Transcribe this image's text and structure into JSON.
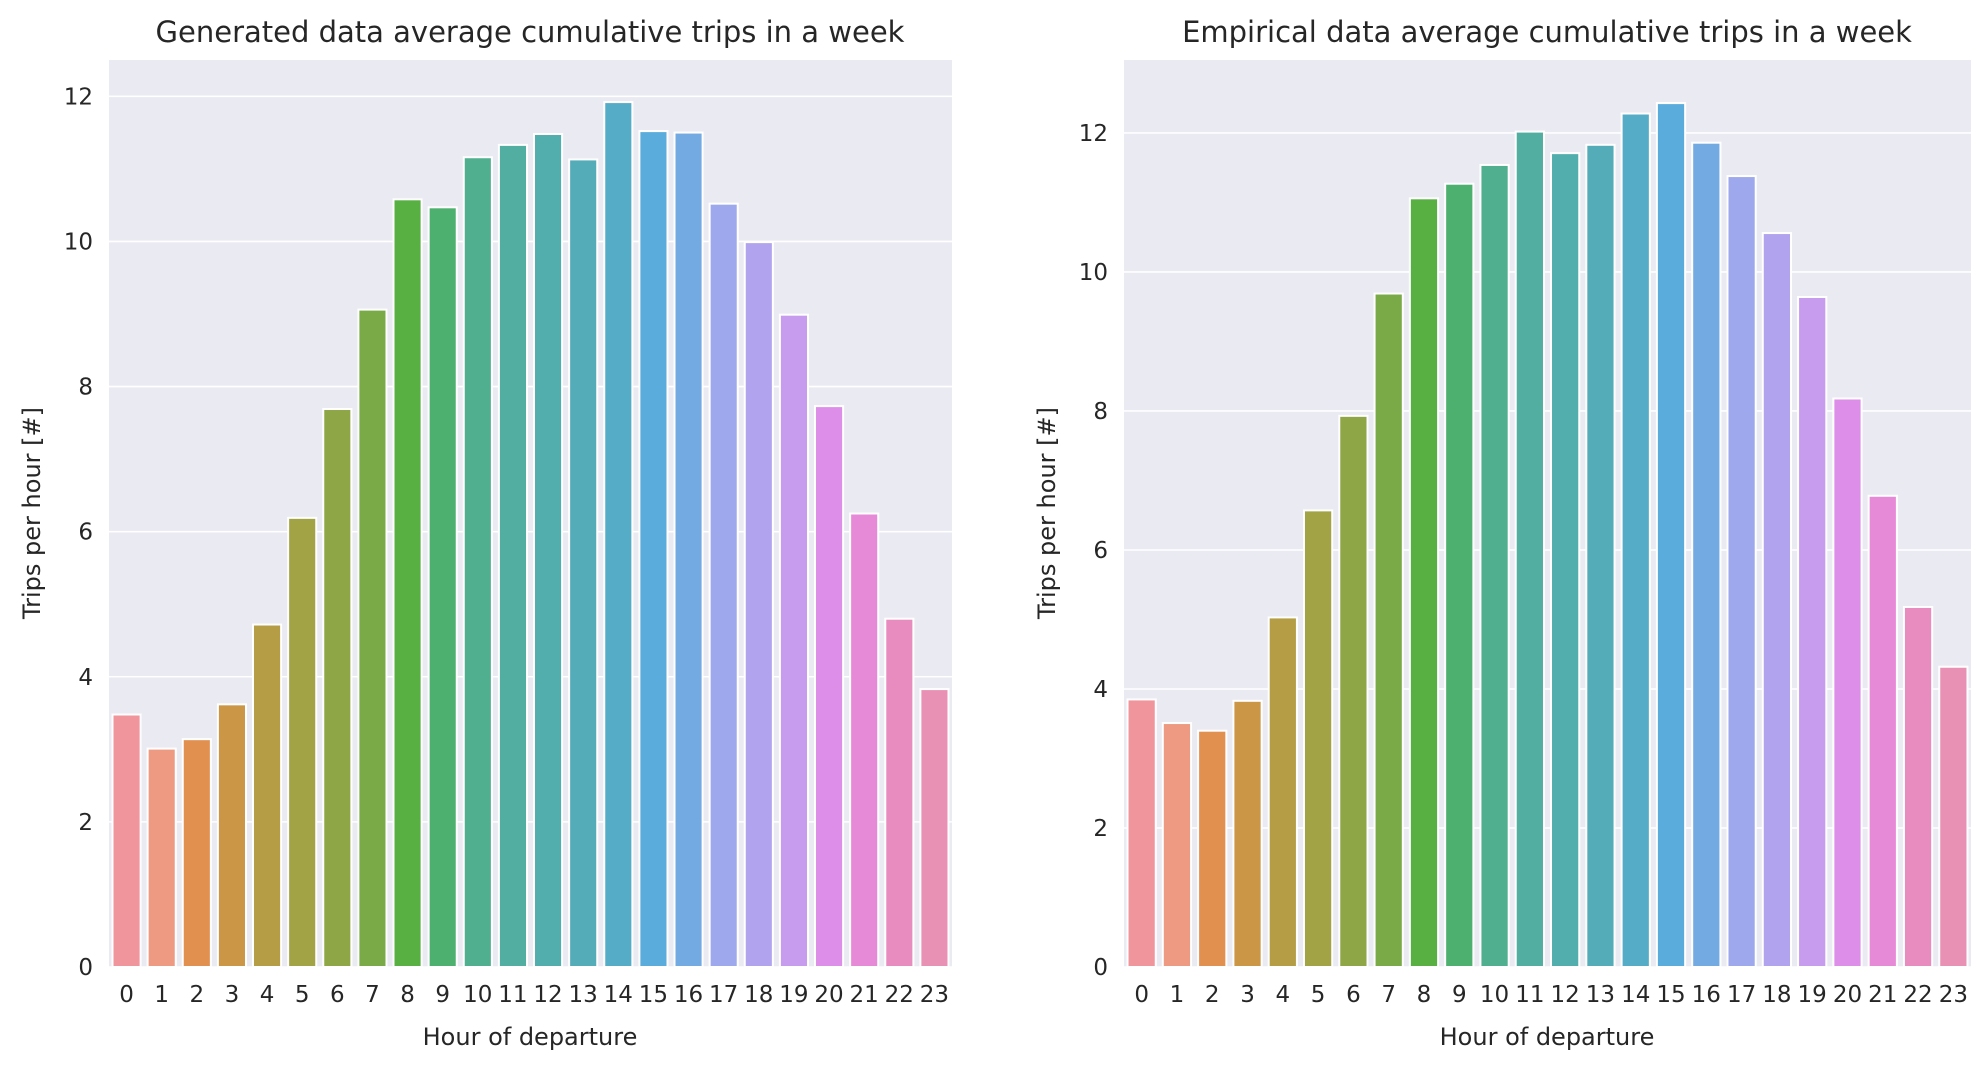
{
  "chart_data": [
    {
      "type": "bar",
      "title": "Generated data average cumulative trips in a week",
      "xlabel": "Hour of departure",
      "ylabel": "Trips per hour [#]",
      "categories": [
        "0",
        "1",
        "2",
        "3",
        "4",
        "5",
        "6",
        "7",
        "8",
        "9",
        "10",
        "11",
        "12",
        "13",
        "14",
        "15",
        "16",
        "17",
        "18",
        "19",
        "20",
        "21",
        "22",
        "23"
      ],
      "values": [
        3.48,
        3.01,
        3.14,
        3.62,
        4.72,
        6.19,
        7.69,
        9.06,
        10.58,
        10.47,
        11.16,
        11.33,
        11.48,
        11.13,
        11.92,
        11.52,
        11.5,
        10.52,
        9.99,
        8.99,
        7.73,
        6.25,
        4.8,
        3.83
      ],
      "yticks": [
        0,
        2,
        4,
        6,
        8,
        10,
        12
      ],
      "ylim": [
        0,
        12.5
      ],
      "grid": true,
      "legend": "none"
    },
    {
      "type": "bar",
      "title": "Empirical data average cumulative trips in a week",
      "xlabel": "Hour of departure",
      "ylabel": "Trips per hour [#]",
      "categories": [
        "0",
        "1",
        "2",
        "3",
        "4",
        "5",
        "6",
        "7",
        "8",
        "9",
        "10",
        "11",
        "12",
        "13",
        "14",
        "15",
        "16",
        "17",
        "18",
        "19",
        "20",
        "21",
        "22",
        "23"
      ],
      "values": [
        3.85,
        3.51,
        3.4,
        3.83,
        5.03,
        6.57,
        7.93,
        9.69,
        11.06,
        11.27,
        11.54,
        12.02,
        11.71,
        11.83,
        12.28,
        12.43,
        11.86,
        11.38,
        10.56,
        9.64,
        8.18,
        6.78,
        5.18,
        4.32
      ],
      "yticks": [
        0,
        2,
        4,
        6,
        8,
        10,
        12
      ],
      "ylim": [
        0,
        13.05
      ],
      "grid": true,
      "legend": "none"
    }
  ],
  "colors": {
    "axes_background": "#eaeaf2",
    "gridline": "#ffffff",
    "bar_edge": "#ffffff",
    "palette": [
      "#f0959c",
      "#ee9981",
      "#e1904f",
      "#cc9647",
      "#b49d45",
      "#a2a345",
      "#8ea646",
      "#7aaa47",
      "#58b042",
      "#4eb06e",
      "#4faf8f",
      "#51aea0",
      "#52adad",
      "#54acb8",
      "#55acc6",
      "#59acdb",
      "#73aae2",
      "#9ea8ed",
      "#b1a3ee",
      "#c79bed",
      "#dd8ee8",
      "#e68ad7",
      "#e88bbe",
      "#e891b4"
    ]
  }
}
